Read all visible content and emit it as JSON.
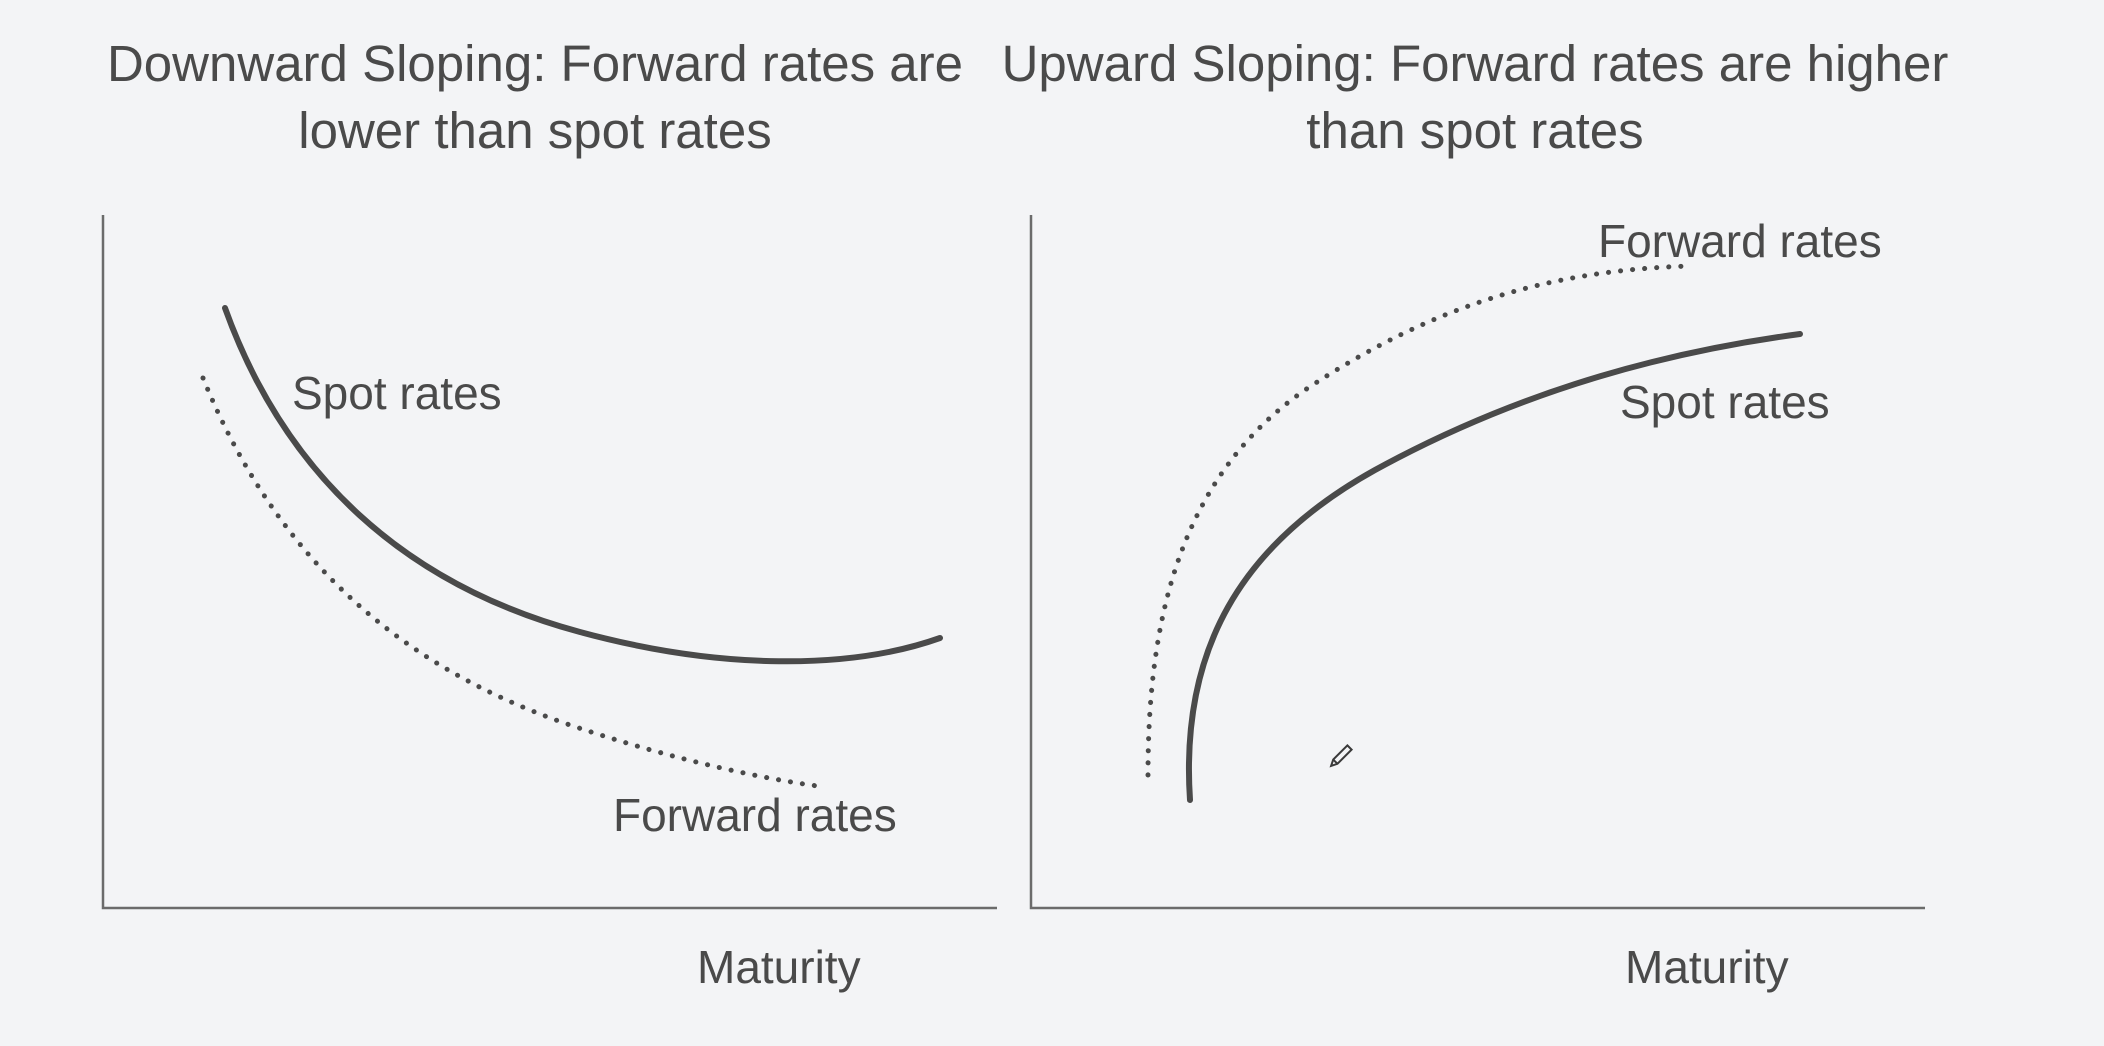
{
  "chart_data": [
    {
      "type": "line",
      "title": "Downward Sloping: Forward rates are lower than spot rates",
      "xlabel": "Maturity",
      "ylabel": "",
      "series": [
        {
          "name": "Spot rates",
          "style": "solid",
          "curve": "decreasing, flattening then slightly rising at long maturities"
        },
        {
          "name": "Forward rates",
          "style": "dotted",
          "curve": "decreasing, below spot rates"
        }
      ],
      "grid": false
    },
    {
      "type": "line",
      "title": "Upward Sloping: Forward rates are higher than spot rates",
      "xlabel": "Maturity",
      "ylabel": "",
      "series": [
        {
          "name": "Spot rates",
          "style": "solid",
          "curve": "increasing, concave"
        },
        {
          "name": "Forward rates",
          "style": "dotted",
          "curve": "increasing, above spot rates"
        }
      ],
      "grid": false
    }
  ],
  "colors": {
    "curve": "#4a4a4a",
    "axis": "#6b6b6b",
    "background": "#f3f4f6"
  },
  "icons": {
    "cursor": "pencil-icon"
  }
}
